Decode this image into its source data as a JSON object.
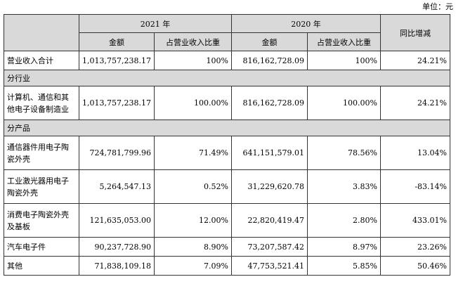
{
  "unit_label": "单位：元",
  "header": {
    "year_2021": "2021 年",
    "year_2020": "2020 年",
    "yoy": "同比增减",
    "amount": "金额",
    "share": "占营业收入比重"
  },
  "total_row": {
    "label": "营业收入合计",
    "amount_2021": "1,013,757,238.17",
    "share_2021": "100%",
    "amount_2020": "816,162,728.09",
    "share_2020": "100%",
    "yoy": "24.21%"
  },
  "by_industry": {
    "title": "分行业",
    "rows": [
      {
        "label": "计算机、通信和其他电子设备制造业",
        "amount_2021": "1,013,757,238.17",
        "share_2021": "100.00%",
        "amount_2020": "816,162,728.09",
        "share_2020": "100.00%",
        "yoy": "24.21%"
      }
    ]
  },
  "by_product": {
    "title": "分产品",
    "rows": [
      {
        "label": "通信器件用电子陶瓷外壳",
        "amount_2021": "724,781,799.96",
        "share_2021": "71.49%",
        "amount_2020": "641,151,579.01",
        "share_2020": "78.56%",
        "yoy": "13.04%"
      },
      {
        "label": "工业激光器用电子陶瓷外壳",
        "amount_2021": "5,264,547.13",
        "share_2021": "0.52%",
        "amount_2020": "31,229,620.78",
        "share_2020": "3.83%",
        "yoy": "-83.14%"
      },
      {
        "label": "消费电子陶瓷外壳及基板",
        "amount_2021": "121,635,053.00",
        "share_2021": "12.00%",
        "amount_2020": "22,820,419.47",
        "share_2020": "2.80%",
        "yoy": "433.01%"
      },
      {
        "label": "汽车电子件",
        "amount_2021": "90,237,728.90",
        "share_2021": "8.90%",
        "amount_2020": "73,207,587.42",
        "share_2020": "8.97%",
        "yoy": "23.26%"
      },
      {
        "label": "其他",
        "amount_2021": "71,838,109.18",
        "share_2021": "7.09%",
        "amount_2020": "47,753,521.41",
        "share_2020": "5.85%",
        "yoy": "50.46%"
      }
    ]
  }
}
